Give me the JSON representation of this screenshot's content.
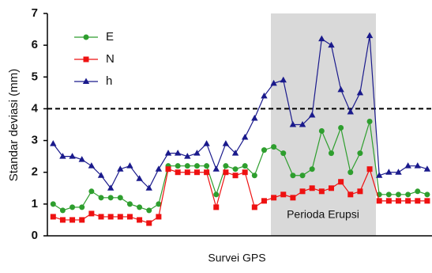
{
  "chart_data": {
    "type": "line",
    "y_label": "Standar deviasi (mm)",
    "x_label": "Survei GPS",
    "annotation": "Perioda Erupsi",
    "reference_line": {
      "value": 4,
      "style": "dashed",
      "color": "#000000"
    },
    "categories": [
      null,
      null,
      null,
      null,
      null,
      null,
      null,
      null,
      null,
      null,
      null,
      null,
      null,
      null,
      null,
      null,
      null,
      null,
      null,
      null,
      null,
      null,
      null,
      null,
      null,
      null,
      null,
      null,
      null,
      null,
      null,
      null,
      null,
      null,
      null,
      null,
      null,
      null,
      null,
      null
    ],
    "series": [
      {
        "name": "E",
        "color": "#2e9e2e",
        "marker": "circle",
        "values": [
          1.0,
          0.8,
          0.9,
          0.9,
          1.4,
          1.2,
          1.2,
          1.2,
          1.0,
          0.9,
          0.8,
          1.0,
          2.2,
          2.2,
          2.2,
          2.2,
          2.2,
          1.3,
          2.2,
          2.1,
          2.2,
          1.9,
          2.7,
          2.8,
          2.6,
          1.9,
          1.9,
          2.1,
          3.3,
          2.6,
          3.4,
          2.0,
          2.6,
          3.6,
          1.3,
          1.3,
          1.3,
          1.3,
          1.4,
          1.3
        ]
      },
      {
        "name": "N",
        "color": "#ee1111",
        "marker": "square",
        "values": [
          0.6,
          0.5,
          0.5,
          0.5,
          0.7,
          0.6,
          0.6,
          0.6,
          0.6,
          0.5,
          0.4,
          0.6,
          2.1,
          2.0,
          2.0,
          2.0,
          2.0,
          0.9,
          2.0,
          1.9,
          2.0,
          0.9,
          1.1,
          1.2,
          1.3,
          1.2,
          1.4,
          1.5,
          1.4,
          1.5,
          1.7,
          1.3,
          1.4,
          2.1,
          1.1,
          1.1,
          1.1,
          1.1,
          1.1,
          1.1
        ]
      },
      {
        "name": "h",
        "color": "#1a1a8c",
        "marker": "triangle",
        "values": [
          2.9,
          2.5,
          2.5,
          2.4,
          2.2,
          1.9,
          1.5,
          2.1,
          2.2,
          1.8,
          1.5,
          2.1,
          2.6,
          2.6,
          2.5,
          2.6,
          2.9,
          2.1,
          2.9,
          2.6,
          3.1,
          3.7,
          4.4,
          4.8,
          4.9,
          3.5,
          3.5,
          3.8,
          6.2,
          6.0,
          4.6,
          3.9,
          4.5,
          6.3,
          1.9,
          2.0,
          2.0,
          2.2,
          2.2,
          2.1
        ]
      }
    ],
    "ylim": [
      0,
      7
    ],
    "yticks": [
      0,
      1,
      2,
      3,
      4,
      5,
      6,
      7
    ],
    "grid": false
  }
}
